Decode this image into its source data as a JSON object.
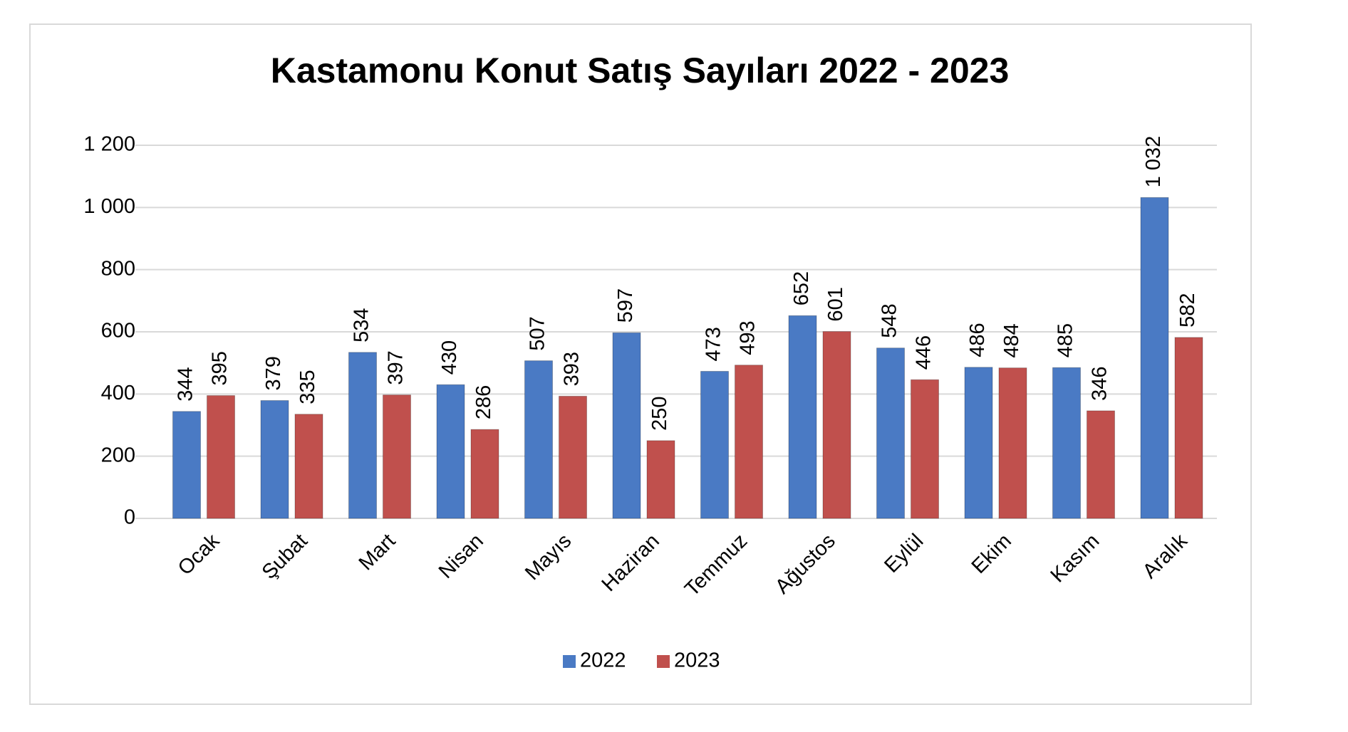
{
  "chart_data": {
    "type": "bar",
    "title": "Kastamonu Konut Satış Sayıları 2022 - 2023",
    "categories": [
      "Ocak",
      "Şubat",
      "Mart",
      "Nisan",
      "Mayıs",
      "Haziran",
      "Temmuz",
      "Ağustos",
      "Eylül",
      "Ekim",
      "Kasım",
      "Aralık"
    ],
    "series": [
      {
        "name": "2022",
        "color": "#4a7ac4",
        "values": [
          344,
          379,
          534,
          430,
          507,
          597,
          473,
          652,
          548,
          486,
          485,
          1032
        ],
        "value_labels": [
          "344",
          "379",
          "534",
          "430",
          "507",
          "597",
          "473",
          "652",
          "548",
          "486",
          "485",
          "1 032"
        ]
      },
      {
        "name": "2023",
        "color": "#c0504d",
        "values": [
          395,
          335,
          397,
          286,
          393,
          250,
          493,
          601,
          446,
          484,
          346,
          582
        ]
      }
    ],
    "ylim": [
      0,
      1200
    ],
    "yticks": [
      0,
      200,
      400,
      600,
      800,
      {
        "value": 1000,
        "label": "1 000"
      },
      {
        "value": 1200,
        "label": "1 200"
      }
    ],
    "grid": true,
    "legend": "bottom"
  }
}
